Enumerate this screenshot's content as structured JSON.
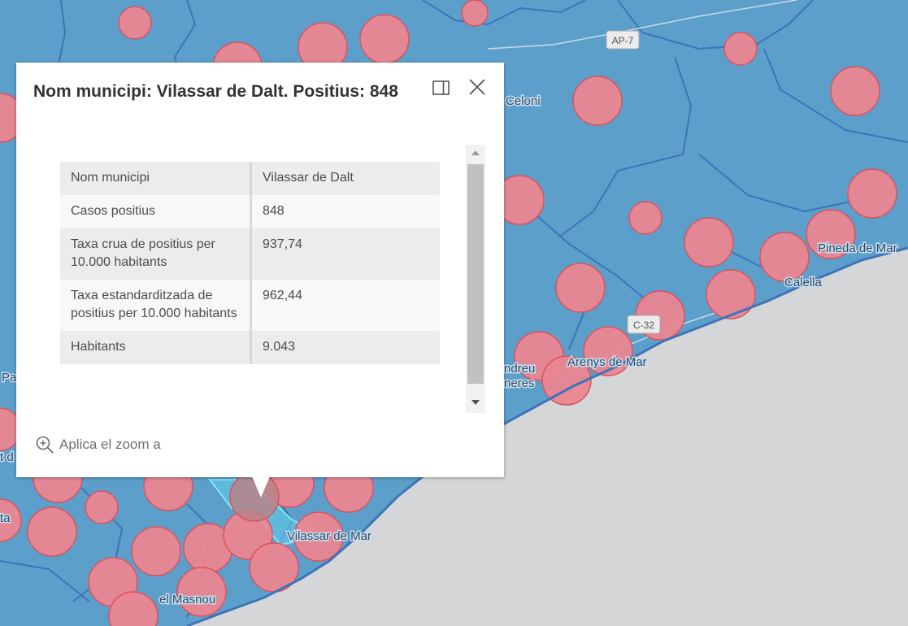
{
  "map": {
    "colors": {
      "land": "#5c9fcb",
      "sea": "#d4d6d7",
      "border": "#3d74b8",
      "circle_fill": "#ea8690",
      "circle_stroke": "#d9545d",
      "highlight": "#7fd3ee"
    },
    "place_labels": [
      {
        "id": "celoni",
        "text": "Celoni"
      },
      {
        "id": "pineda",
        "text": "Pineda de Mar"
      },
      {
        "id": "calella",
        "text": "Calella"
      },
      {
        "id": "arenys",
        "text": "Arenys de Mar"
      },
      {
        "id": "vilassar-mar",
        "text": "Vilassar de Mar"
      },
      {
        "id": "masnou",
        "text": "el Masnou"
      },
      {
        "id": "andreu",
        "text": "ndreu"
      },
      {
        "id": "llavaneres",
        "text": "neres"
      },
      {
        "id": "pa",
        "text": "Pa"
      },
      {
        "id": "ta",
        "text": "ta"
      },
      {
        "id": "td",
        "text": "t d"
      }
    ],
    "road_shields": [
      {
        "id": "ap7",
        "text": "AP-7"
      },
      {
        "id": "c32",
        "text": "C-32"
      }
    ]
  },
  "popup": {
    "title": "Nom municipi: Vilassar de Dalt. Positius: 848",
    "dock_icon": "dock-side-icon",
    "close_icon": "close-icon",
    "fields": [
      {
        "label": "Nom municipi",
        "value": "Vilassar de Dalt"
      },
      {
        "label": "Casos positius",
        "value": "848"
      },
      {
        "label": "Taxa crua de positius per 10.000 habitants",
        "value": "937,74"
      },
      {
        "label": "Taxa estandarditzada de positius per 10.000 habitants",
        "value": "962,44"
      },
      {
        "label": "Habitants",
        "value": "9.043"
      }
    ],
    "zoom_action": {
      "icon": "zoom-in-icon",
      "label": "Aplica el zoom a"
    }
  }
}
